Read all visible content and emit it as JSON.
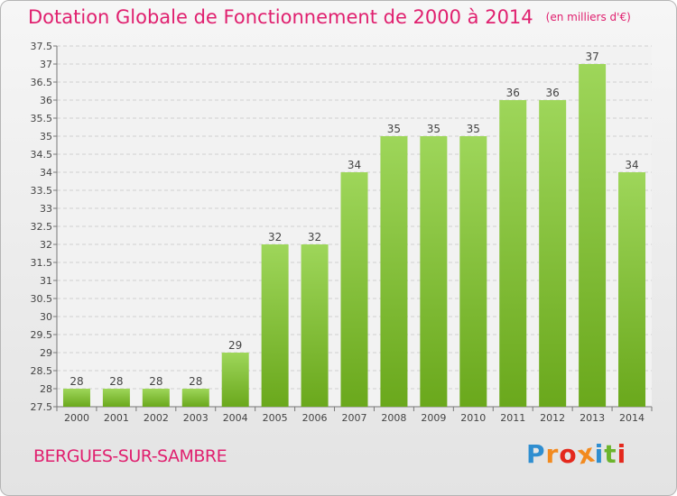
{
  "title": "Dotation Globale de Fonctionnement de 2000 à 2014",
  "subtitle": "(en milliers d'€)",
  "commune": "BERGUES-SUR-SAMBRE",
  "logo": {
    "letters": [
      "P",
      "r",
      "o",
      "x",
      "i",
      "t",
      "i"
    ],
    "colors": [
      "#2f8ed0",
      "#f28a1f",
      "#e4281c",
      "#f28a1f",
      "#2f8ed0",
      "#6cb42c",
      "#e4281c"
    ]
  },
  "colors": {
    "accent": "#e0206f",
    "bar_light": "#9ed65a",
    "bar_dark": "#6aa81c",
    "grid": "#d0d0d0"
  },
  "chart_data": {
    "type": "bar",
    "categories": [
      "2000",
      "2001",
      "2002",
      "2003",
      "2004",
      "2005",
      "2006",
      "2007",
      "2008",
      "2009",
      "2010",
      "2011",
      "2012",
      "2013",
      "2014"
    ],
    "values": [
      28,
      28,
      28,
      28,
      29,
      32,
      32,
      34,
      35,
      35,
      35,
      36,
      36,
      37,
      34
    ],
    "data_labels": [
      "28",
      "28",
      "28",
      "28",
      "29",
      "32",
      "32",
      "34",
      "35",
      "35",
      "35",
      "36",
      "36",
      "37",
      "34"
    ],
    "ylim": [
      27.5,
      37.5
    ],
    "yticks": [
      "27.5",
      "28",
      "28.5",
      "29",
      "29.5",
      "30",
      "30.5",
      "31",
      "31.5",
      "32",
      "32.5",
      "33",
      "33.5",
      "34",
      "34.5",
      "35",
      "35.5",
      "36",
      "36.5",
      "37",
      "37.5"
    ],
    "grid": true,
    "xlabel": "",
    "ylabel": ""
  }
}
